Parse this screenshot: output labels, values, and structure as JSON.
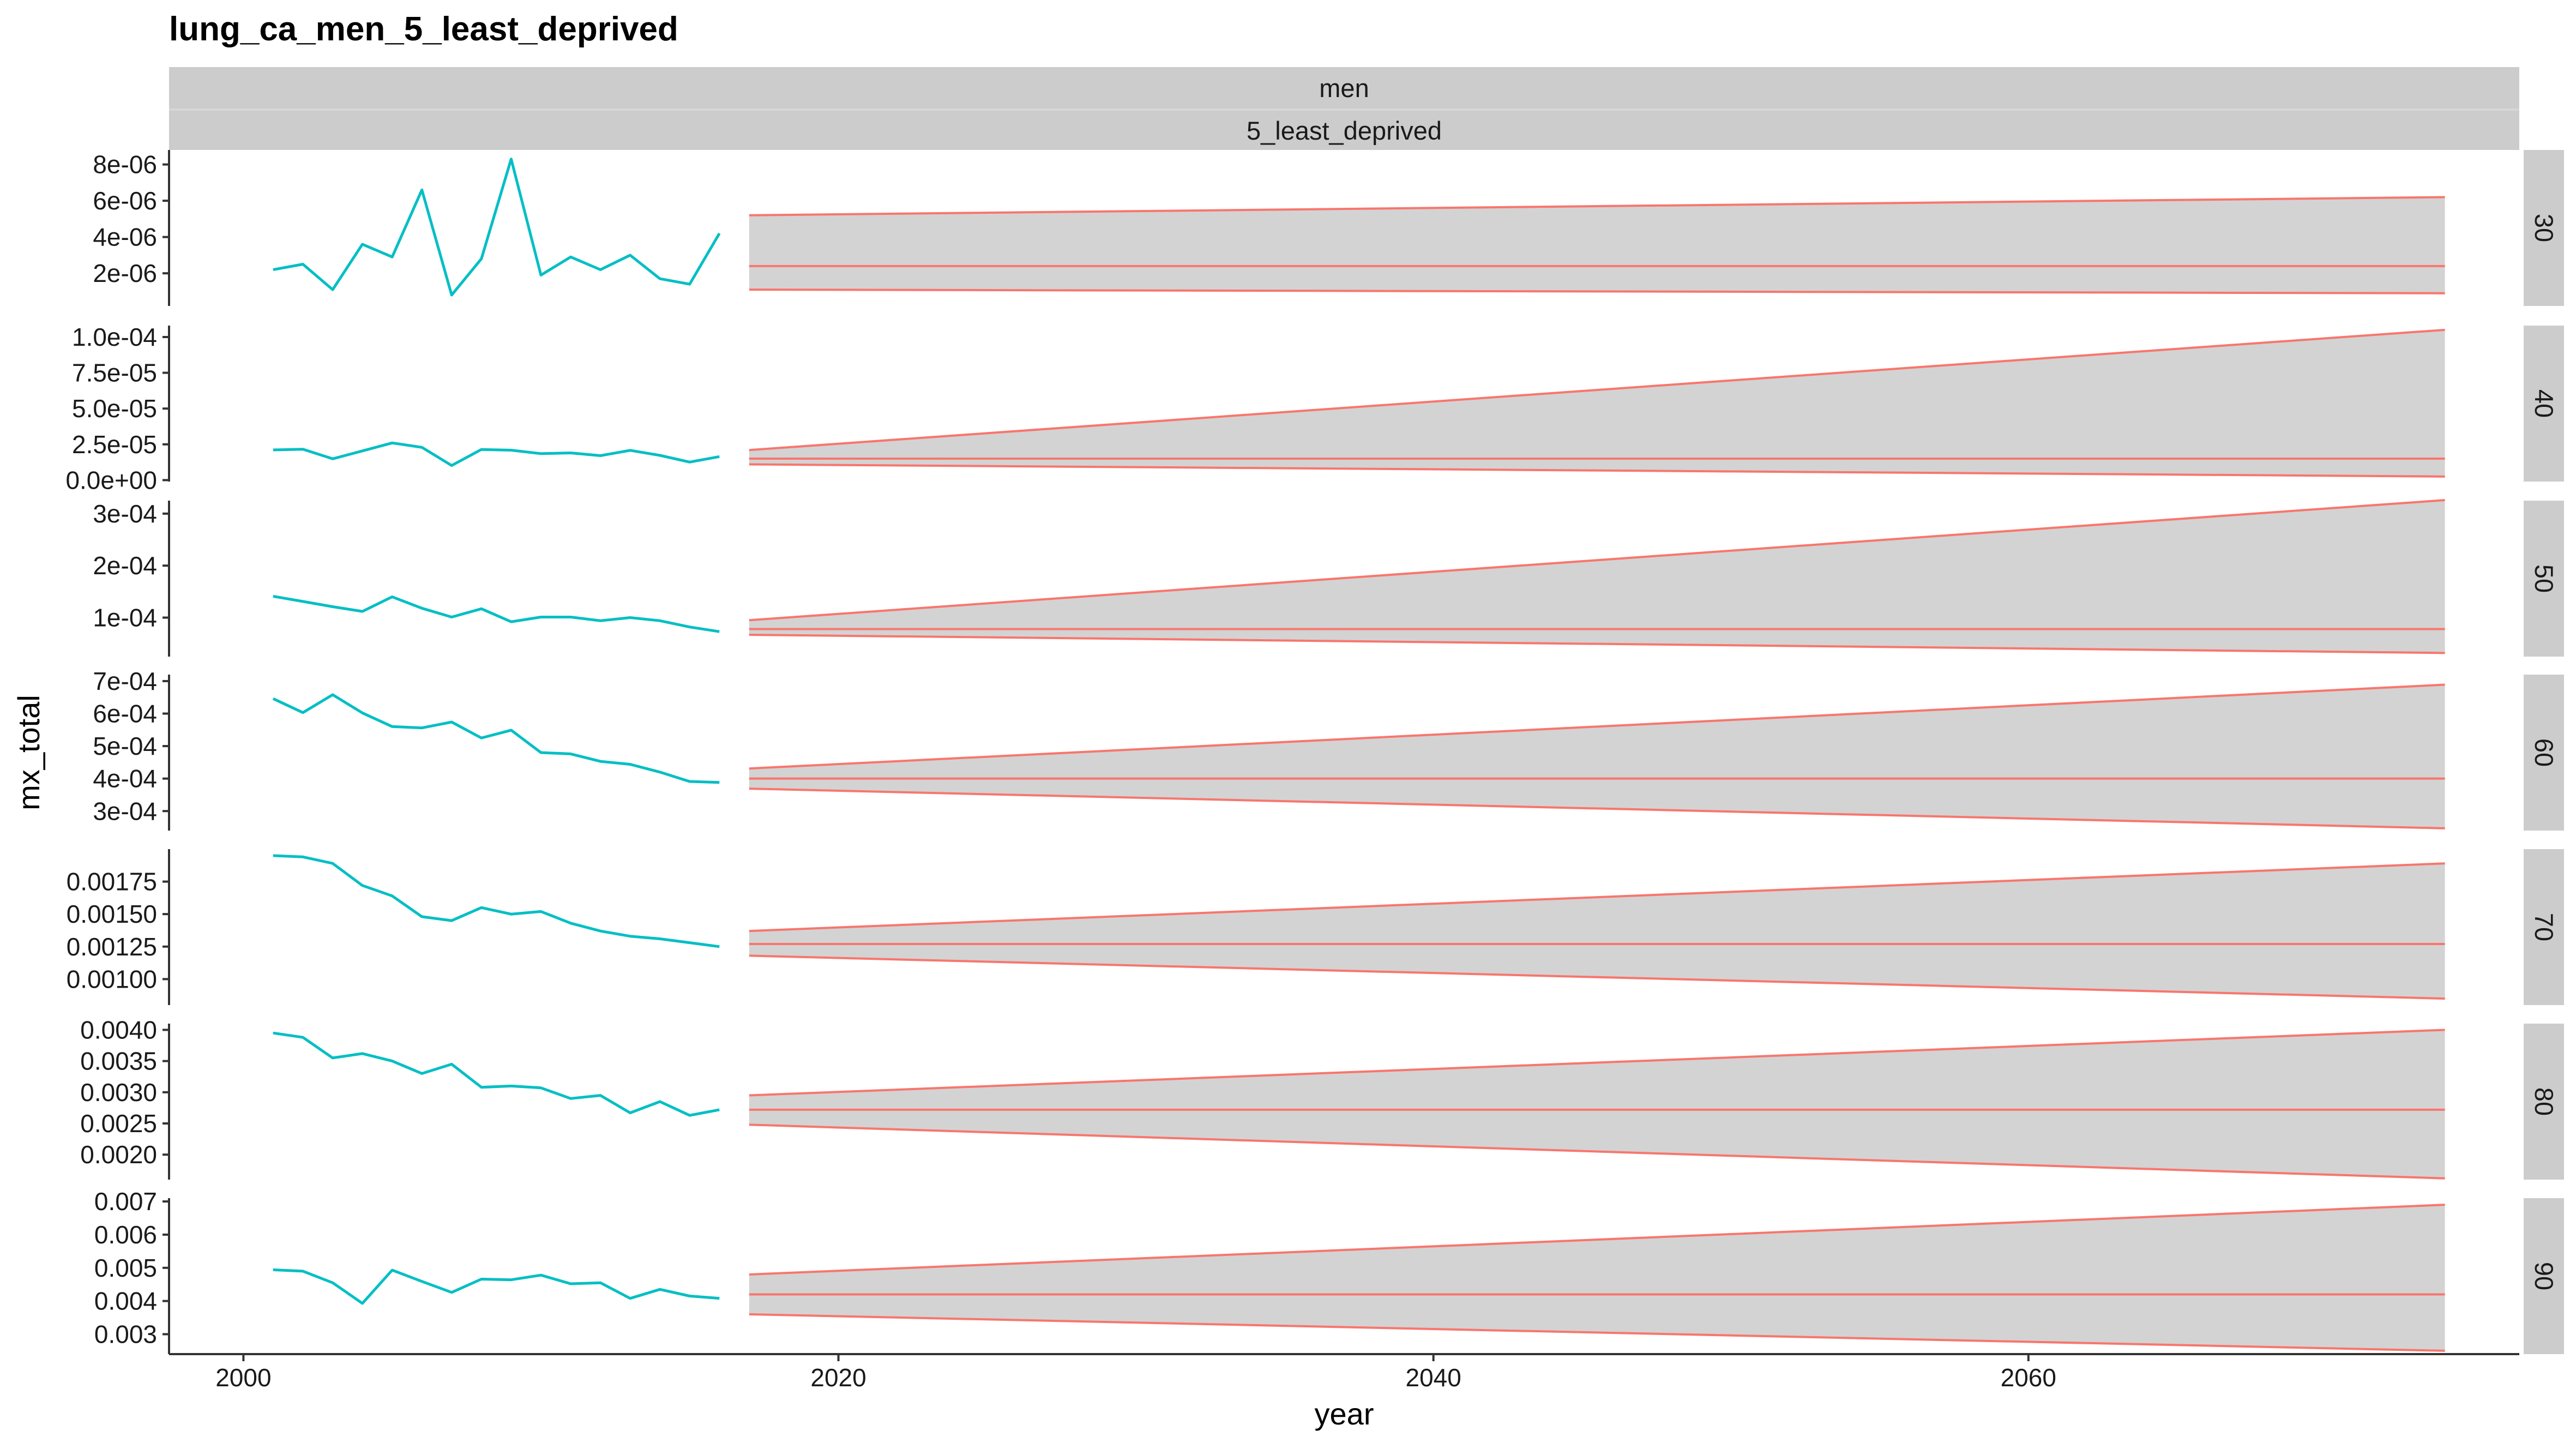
{
  "chart_data": {
    "type": "line",
    "title": "lung_ca_men_5_least_deprived",
    "xlabel": "year",
    "ylabel": "mx_total",
    "strips_top": [
      "men",
      "5_least_deprived"
    ],
    "xlim": [
      1997.5,
      2076.5
    ],
    "x_ticks": [
      2000,
      2020,
      2040,
      2060
    ],
    "x_tick_labels": [
      "2000",
      "2020",
      "2040",
      "2060"
    ],
    "colors": {
      "observed": "#00BFC4",
      "forecast": "#F8766D",
      "band_fill": "#d3d3d3",
      "strip_bg": "#cccccc",
      "panel_bg": "#ffffff"
    },
    "observed_years": [
      2001,
      2002,
      2003,
      2004,
      2005,
      2006,
      2007,
      2008,
      2009,
      2010,
      2011,
      2012,
      2013,
      2014,
      2015,
      2016
    ],
    "forecast_years": [
      2017,
      2074
    ],
    "panels": [
      {
        "strip": "30",
        "ylim": [
          2e-07,
          8.8e-06
        ],
        "y_ticks": [
          2e-06,
          4e-06,
          6e-06,
          8e-06
        ],
        "y_tick_labels": [
          "2e-06",
          "4e-06",
          "6e-06",
          "8e-06"
        ],
        "observed": [
          2.2e-06,
          2.5e-06,
          1.1e-06,
          3.6e-06,
          2.9e-06,
          6.6e-06,
          8e-07,
          2.8e-06,
          8.3e-06,
          1.9e-06,
          2.9e-06,
          2.2e-06,
          3e-06,
          1.7e-06,
          1.4e-06,
          4.2e-06
        ],
        "forecast_mean": [
          2.4e-06,
          2.4e-06
        ],
        "forecast_lower": [
          1.1e-06,
          9e-07
        ],
        "forecast_upper": [
          5.2e-06,
          6.2e-06
        ]
      },
      {
        "strip": "40",
        "ylim": [
          -1e-06,
          0.000108
        ],
        "y_ticks": [
          0,
          2.5e-05,
          5e-05,
          7.5e-05,
          0.0001
        ],
        "y_tick_labels": [
          "0.0e+00",
          "2.5e-05",
          "5.0e-05",
          "7.5e-05",
          "1.0e-04"
        ],
        "observed": [
          2.11e-05,
          2.16e-05,
          1.49e-05,
          2.04e-05,
          2.6e-05,
          2.29e-05,
          1.02e-05,
          2.14e-05,
          2.09e-05,
          1.85e-05,
          1.9e-05,
          1.71e-05,
          2.08e-05,
          1.73e-05,
          1.26e-05,
          1.64e-05
        ],
        "forecast_mean": [
          1.5e-05,
          1.5e-05
        ],
        "forecast_lower": [
          1.1e-05,
          2.5e-06
        ],
        "forecast_upper": [
          2.1e-05,
          0.000105
        ]
      },
      {
        "strip": "50",
        "ylim": [
          2.5e-05,
          0.000325
        ],
        "y_ticks": [
          0.0001,
          0.0002,
          0.0003
        ],
        "y_tick_labels": [
          "1e-04",
          "2e-04",
          "3e-04"
        ],
        "observed": [
          0.000141,
          0.000131,
          0.000121,
          0.000112,
          0.00014,
          0.000118,
          0.000101,
          0.000117,
          9.2e-05,
          0.000101,
          0.000101,
          9.4e-05,
          0.0001,
          9.4e-05,
          8.2e-05,
          7.3e-05
        ],
        "forecast_mean": [
          7.8e-05,
          7.8e-05
        ],
        "forecast_lower": [
          6.7e-05,
          3.2e-05
        ],
        "forecast_upper": [
          9.5e-05,
          0.000326
        ]
      },
      {
        "strip": "60",
        "ylim": [
          0.00024,
          0.00072
        ],
        "y_ticks": [
          0.0003,
          0.0004,
          0.0005,
          0.0006,
          0.0007
        ],
        "y_tick_labels": [
          "3e-04",
          "4e-04",
          "5e-04",
          "6e-04",
          "7e-04"
        ],
        "observed": [
          0.000646,
          0.000603,
          0.000658,
          0.000602,
          0.00056,
          0.000556,
          0.000574,
          0.000525,
          0.000549,
          0.00048,
          0.000476,
          0.000453,
          0.000444,
          0.00042,
          0.000391,
          0.000388
        ],
        "forecast_mean": [
          0.0004,
          0.0004
        ],
        "forecast_lower": [
          0.000369,
          0.000247
        ],
        "forecast_upper": [
          0.000431,
          0.000689
        ]
      },
      {
        "strip": "70",
        "ylim": [
          0.0008,
          0.002
        ],
        "y_ticks": [
          0.001,
          0.00125,
          0.0015,
          0.00175
        ],
        "y_tick_labels": [
          "0.00100",
          "0.00125",
          "0.00150",
          "0.00175"
        ],
        "observed": [
          0.00195,
          0.00194,
          0.00189,
          0.00172,
          0.00164,
          0.00148,
          0.00145,
          0.00155,
          0.0015,
          0.00152,
          0.00143,
          0.00137,
          0.00133,
          0.00131,
          0.00128,
          0.00125
        ],
        "forecast_mean": [
          0.00127,
          0.00127
        ],
        "forecast_lower": [
          0.00118,
          0.00085
        ],
        "forecast_upper": [
          0.00137,
          0.00189
        ]
      },
      {
        "strip": "80",
        "ylim": [
          0.0016,
          0.0041
        ],
        "y_ticks": [
          0.002,
          0.0025,
          0.003,
          0.0035,
          0.004
        ],
        "y_tick_labels": [
          "0.0020",
          "0.0025",
          "0.0030",
          "0.0035",
          "0.0040"
        ],
        "observed": [
          0.00395,
          0.00388,
          0.00355,
          0.00362,
          0.0035,
          0.0033,
          0.00345,
          0.00308,
          0.0031,
          0.00307,
          0.0029,
          0.00295,
          0.00267,
          0.00285,
          0.00263,
          0.00272
        ],
        "forecast_mean": [
          0.00272,
          0.00272
        ],
        "forecast_lower": [
          0.00248,
          0.00162
        ],
        "forecast_upper": [
          0.00295,
          0.004
        ]
      },
      {
        "strip": "90",
        "ylim": [
          0.0024,
          0.0071
        ],
        "y_ticks": [
          0.003,
          0.004,
          0.005,
          0.006,
          0.007
        ],
        "y_tick_labels": [
          "0.003",
          "0.004",
          "0.005",
          "0.006",
          "0.007"
        ],
        "observed": [
          0.00494,
          0.0049,
          0.00455,
          0.00393,
          0.00493,
          0.00459,
          0.00426,
          0.00466,
          0.00464,
          0.00478,
          0.00452,
          0.00455,
          0.00408,
          0.00435,
          0.00415,
          0.00408
        ],
        "forecast_mean": [
          0.0042,
          0.0042
        ],
        "forecast_lower": [
          0.0036,
          0.0025
        ],
        "forecast_upper": [
          0.0048,
          0.0069
        ]
      }
    ]
  }
}
